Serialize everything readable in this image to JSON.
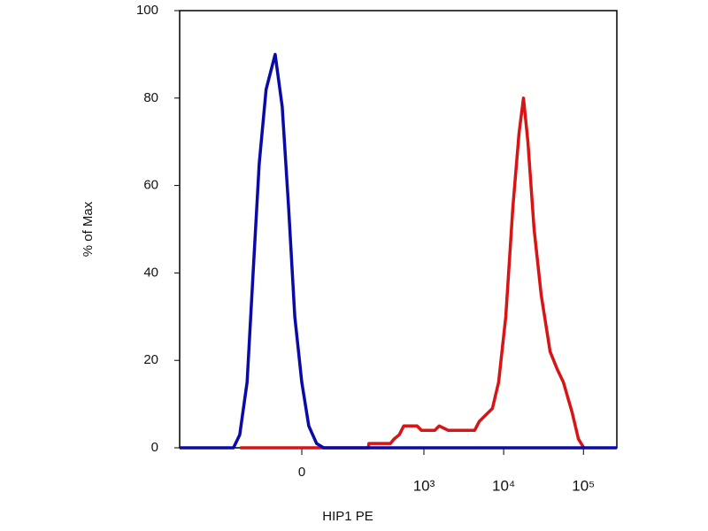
{
  "chart_data": {
    "type": "line",
    "x_label": "HIP1 PE",
    "y_label": "% of Max",
    "xscale": "biexponential",
    "xlim": [
      -1000,
      262144
    ],
    "xticks": [
      0,
      {
        "value": 1000,
        "label": "10³"
      },
      {
        "value": 10000,
        "label": "10⁴"
      },
      {
        "value": 100000,
        "label": "10⁵"
      }
    ],
    "ylim": [
      0,
      100
    ],
    "yticks": [
      0,
      20,
      40,
      60,
      80,
      100
    ],
    "series": [
      {
        "color": "#0a0aa8",
        "x": [
          -1000,
          -208,
          -172,
          -137,
          -113,
          -92,
          -72,
          -50,
          -35,
          -23,
          -12,
          0,
          12,
          26,
          40,
          262144
        ],
        "values": [
          0,
          0,
          3,
          15,
          40,
          65,
          82,
          90,
          78,
          55,
          30,
          15,
          5,
          1,
          0,
          0
        ]
      },
      {
        "color": "#d81414",
        "x": [
          -170,
          197,
          200,
          379,
          420,
          491,
          558,
          820,
          932,
          1369,
          1558,
          2012,
          4337,
          4927,
          5600,
          7233,
          8650,
          10620,
          13030,
          15580,
          17730,
          20120,
          24070,
          29560,
          38170,
          46850,
          56050,
          72390,
          86550,
          101000
        ],
        "values": [
          0,
          0,
          1,
          1,
          2,
          3,
          5,
          5,
          4,
          4,
          5,
          4,
          4,
          6,
          7,
          9,
          15,
          30,
          55,
          72,
          80,
          70,
          50,
          35,
          22,
          18,
          15,
          8,
          2,
          0
        ]
      }
    ]
  }
}
